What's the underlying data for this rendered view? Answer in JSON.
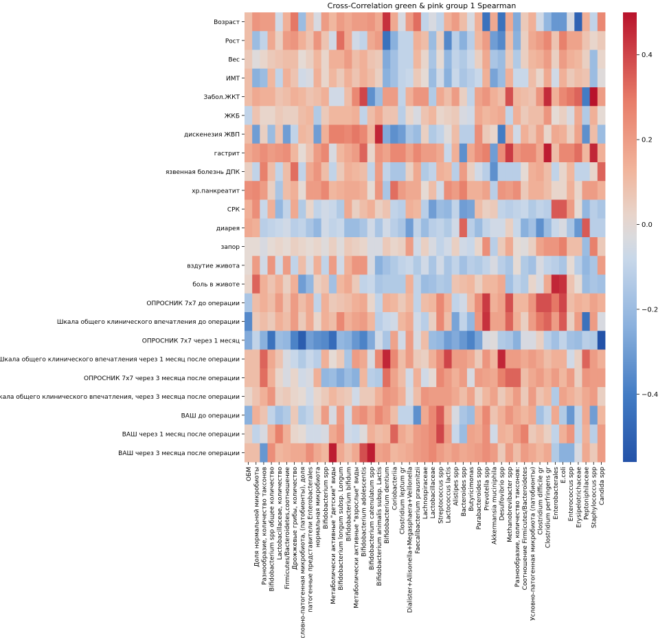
{
  "chart_data": {
    "type": "heatmap",
    "title": "Cross-Correlation green & pink group 1 Spearman",
    "xlabel": "",
    "ylabel": "",
    "rows": [
      "Возраст",
      "Рост",
      "Вес",
      "ИМТ",
      "Забол.ЖКТ",
      "ЖКБ",
      "дискенезия ЖВП",
      "гастрит",
      "язвенная болезнь ДПК",
      "хр.панкреатит",
      "СРК",
      "диарея",
      "запор",
      "вздутие живота",
      "боль в животе",
      "ОПРОСНИК 7х7 до операции",
      "Шкала общего клинического впечатления до операции",
      "ОПРОСНИК 7х7 через 1 месяц",
      "Шкала общего клинического впечатления через 1 месяц после операции",
      "ОПРОСНИК 7х7 через 3 месяца после операции",
      "Шкала общего клинического впечатления, через 3 месяца после операции",
      "ВАШ до операции",
      "ВАШ через 1 месяц после операции",
      "ВАШ через 3 месяца после операции"
    ],
    "columns": [
      "ОБМ",
      "Доля нормальной микробиоты",
      "Разнообразие, количество таксонов",
      "Bifidobacterium spp общее количество",
      "Lactobacillaceae, количество",
      "Firmicutes/Bacteroidetes,соотношение",
      "Дрожжевые грибы, количество",
      "Условно-патогенная микробиота, (патобионты), доля",
      "патогенные представители Enterobacterales",
      "нормальная микробиота",
      "Bifidobacterium spp",
      "Метаболически активные \"детские\" виды",
      "Bifidobacterium longum subsp. Longum",
      "Bifidobacterium bifidum",
      "Метаболически активные \"взрослые\" виды",
      "Bifidobacterium adolescentis",
      "Bifidobacterium catenulatum spp",
      "Bifidobacterium animalis subsp. Lactis",
      "Bifidobacterium dentium",
      "Coriobacteriia",
      "Clostridium leptum gr",
      "Dialister+Allisonella+Megasphaera+Veillonella",
      "Faecalibacterium prausnitzii",
      "Lachnospiraceae",
      "Lactobacillaceae",
      "Streptococcus spp",
      "Lactococcus lactis",
      "Alistipes spp",
      "Bacteroides spp",
      "Butyricimonas",
      "Parabacteroides spp",
      "Prevotella spp",
      "Akkermansia muciniphila",
      "Desulfovibrio spp",
      "Methanobrevibacter spp",
      "Разнообразие, количество таксонов:",
      "Соотношение Firmicutes/Bacteroidetes",
      "Условно-патогенная микробиота (патобионты)",
      "Clostridium difficile gr",
      "Clostridium perfringens gr",
      "Enterobacterales",
      "E.coli",
      "Enterococcus spp",
      "Erysipelotrichaceae",
      "Peptoniphilaceae",
      "Staphylococcus spp",
      "Candida spp"
    ],
    "colorbar": {
      "ticks": [
        0.4,
        0.2,
        0.0,
        -0.2,
        -0.4
      ],
      "tick_labels": [
        "0.4",
        "0.2",
        "0.0",
        "−0.2",
        "−0.4"
      ],
      "min": -0.56,
      "max": 0.5,
      "colormap": "coolwarm"
    },
    "values": [
      [
        0.1,
        0.22,
        0.2,
        0.2,
        -0.06,
        0.14,
        0.3,
        -0.2,
        0.1,
        -0.04,
        0.2,
        0.12,
        0.2,
        0.16,
        0.2,
        0.2,
        0.22,
        0.16,
        0.44,
        0.16,
        -0.04,
        0.2,
        0.32,
        -0.1,
        -0.04,
        -0.1,
        0.14,
        0.2,
        0.1,
        -0.04,
        0.14,
        -0.44,
        0.16,
        -0.44,
        0.16,
        -0.26,
        0.06,
        0.14,
        -0.06,
        -0.22,
        -0.32,
        -0.32,
        -0.04,
        -0.5,
        0.14,
        -0.1,
        0.26
      ],
      [
        0.1,
        -0.2,
        -0.1,
        0.16,
        0.04,
        0.2,
        0.22,
        0.14,
        0.08,
        0.22,
        0.08,
        -0.06,
        0.32,
        0.16,
        -0.06,
        -0.1,
        0.16,
        0.2,
        -0.44,
        -0.24,
        -0.1,
        -0.1,
        0.14,
        0.1,
        -0.2,
        0.04,
        -0.36,
        -0.12,
        -0.24,
        -0.12,
        0.12,
        0.2,
        -0.3,
        -0.36,
        0.1,
        -0.24,
        0.04,
        0.16,
        0.2,
        0.26,
        0.08,
        0.28,
        0.18,
        0.18,
        0.08,
        0.02,
        0.06
      ],
      [
        0.06,
        -0.02,
        0.02,
        0.06,
        0.08,
        0.1,
        0.1,
        0.0,
        0.04,
        0.12,
        0.02,
        0.14,
        0.14,
        0.2,
        0.1,
        0.14,
        0.08,
        0.06,
        -0.26,
        -0.18,
        -0.1,
        -0.1,
        0.12,
        0.02,
        -0.16,
        0.0,
        -0.22,
        -0.1,
        -0.14,
        -0.08,
        0.04,
        0.16,
        -0.16,
        -0.2,
        0.06,
        -0.14,
        0.04,
        0.12,
        0.14,
        0.2,
        0.04,
        0.2,
        0.14,
        0.12,
        0.04,
        -0.2,
        0.02
      ],
      [
        0.1,
        -0.24,
        -0.2,
        0.12,
        -0.1,
        0.14,
        0.08,
        -0.06,
        -0.04,
        0.14,
        0.02,
        0.12,
        0.06,
        0.14,
        0.08,
        0.14,
        0.1,
        0.04,
        -0.24,
        -0.18,
        -0.1,
        -0.08,
        0.06,
        0.0,
        -0.2,
        -0.06,
        -0.24,
        -0.08,
        -0.16,
        -0.12,
        -0.08,
        0.14,
        -0.28,
        -0.2,
        0.14,
        -0.08,
        -0.08,
        0.1,
        0.02,
        0.16,
        -0.06,
        0.14,
        0.06,
        0.1,
        0.08,
        -0.2,
        -0.02
      ],
      [
        0.1,
        0.16,
        0.14,
        0.14,
        0.08,
        0.1,
        0.14,
        0.12,
        0.08,
        0.1,
        0.14,
        -0.06,
        -0.06,
        0.1,
        0.26,
        0.4,
        -0.34,
        -0.2,
        0.2,
        0.2,
        -0.1,
        0.14,
        0.22,
        0.22,
        -0.14,
        0.16,
        0.1,
        0.2,
        0.04,
        -0.1,
        0.18,
        0.22,
        0.14,
        0.1,
        0.38,
        0.12,
        0.1,
        0.08,
        0.22,
        0.45,
        0.14,
        0.26,
        0.3,
        0.34,
        -0.4,
        0.5,
        0.2
      ],
      [
        -0.1,
        0.08,
        0.02,
        0.02,
        0.06,
        0.04,
        0.04,
        0.1,
        0.12,
        -0.14,
        0.06,
        0.12,
        0.12,
        0.12,
        0.14,
        -0.1,
        0.1,
        0.16,
        0.08,
        0.08,
        -0.12,
        0.02,
        -0.04,
        0.08,
        0.12,
        0.02,
        0.04,
        0.06,
        -0.04,
        -0.06,
        0.16,
        0.12,
        0.14,
        0.16,
        -0.1,
        0.14,
        0.06,
        0.1,
        0.1,
        0.22,
        0.0,
        0.04,
        -0.04,
        0.16,
        -0.14,
        0.14,
        0.0
      ],
      [
        0.1,
        -0.3,
        0.04,
        -0.2,
        0.08,
        -0.3,
        -0.1,
        0.12,
        0.1,
        -0.3,
        0.14,
        0.28,
        0.28,
        0.26,
        0.3,
        0.26,
        0.12,
        0.46,
        -0.26,
        -0.34,
        -0.3,
        -0.16,
        -0.2,
        0.04,
        -0.14,
        -0.1,
        -0.02,
        0.1,
        -0.12,
        -0.12,
        0.24,
        0.06,
        0.02,
        -0.4,
        0.14,
        -0.06,
        0.14,
        0.08,
        0.18,
        0.02,
        0.16,
        0.14,
        0.04,
        0.18,
        -0.34,
        0.1,
        -0.2
      ],
      [
        0.16,
        0.2,
        0.24,
        0.2,
        0.22,
        0.24,
        0.12,
        0.0,
        0.08,
        0.2,
        0.26,
        -0.04,
        0.12,
        0.16,
        0.2,
        0.34,
        0.02,
        0.22,
        0.18,
        0.26,
        0.26,
        0.18,
        0.26,
        0.2,
        0.2,
        0.16,
        -0.08,
        0.14,
        -0.34,
        0.16,
        0.24,
        0.28,
        -0.3,
        0.24,
        0.42,
        0.22,
        0.26,
        0.26,
        0.16,
        0.48,
        0.1,
        0.26,
        0.26,
        0.32,
        0.12,
        0.46,
        0.14
      ],
      [
        0.04,
        -0.1,
        0.28,
        0.1,
        -0.1,
        0.1,
        0.32,
        -0.1,
        0.16,
        0.22,
        0.1,
        -0.1,
        0.06,
        0.14,
        0.12,
        0.1,
        -0.1,
        0.2,
        -0.1,
        -0.16,
        -0.16,
        0.04,
        0.16,
        -0.14,
        -0.1,
        0.14,
        0.12,
        -0.12,
        0.2,
        0.04,
        -0.06,
        -0.12,
        -0.34,
        -0.12,
        -0.12,
        -0.12,
        0.0,
        0.14,
        0.16,
        0.1,
        -0.1,
        0.02,
        0.12,
        -0.1,
        -0.1,
        0.02,
        0.34
      ],
      [
        0.24,
        0.26,
        0.2,
        0.04,
        -0.16,
        0.1,
        0.14,
        0.0,
        0.2,
        0.2,
        0.26,
        0.12,
        0.14,
        0.16,
        0.16,
        0.14,
        0.0,
        0.22,
        -0.16,
        0.32,
        0.2,
        0.16,
        0.16,
        0.0,
        0.1,
        -0.06,
        0.24,
        0.2,
        0.28,
        0.14,
        0.14,
        0.18,
        -0.12,
        0.22,
        0.2,
        0.24,
        0.06,
        0.14,
        0.14,
        0.1,
        0.02,
        0.02,
        0.14,
        0.02,
        0.2,
        0.2,
        0.14
      ],
      [
        0.14,
        0.24,
        -0.08,
        0.14,
        -0.22,
        -0.1,
        0.16,
        -0.14,
        0.02,
        -0.1,
        -0.06,
        -0.08,
        -0.14,
        0.16,
        0.04,
        0.1,
        0.14,
        0.04,
        0.08,
        -0.1,
        -0.12,
        0.14,
        0.12,
        -0.12,
        -0.3,
        -0.2,
        -0.22,
        -0.1,
        -0.3,
        -0.28,
        0.1,
        0.04,
        0.06,
        -0.1,
        -0.12,
        -0.1,
        -0.08,
        -0.14,
        -0.1,
        -0.12,
        0.36,
        0.36,
        0.2,
        0.0,
        -0.22,
        -0.12,
        -0.16
      ],
      [
        0.16,
        0.14,
        -0.12,
        -0.1,
        -0.08,
        -0.06,
        -0.12,
        -0.1,
        -0.16,
        -0.22,
        -0.06,
        -0.1,
        -0.08,
        -0.2,
        -0.2,
        -0.16,
        -0.06,
        -0.16,
        -0.06,
        -0.12,
        -0.16,
        -0.3,
        -0.1,
        -0.2,
        -0.12,
        -0.1,
        -0.14,
        -0.06,
        0.34,
        -0.12,
        -0.2,
        -0.1,
        -0.06,
        -0.06,
        0.04,
        -0.08,
        -0.24,
        -0.18,
        -0.34,
        -0.2,
        -0.08,
        -0.04,
        -0.16,
        -0.32,
        0.36,
        -0.12,
        -0.12
      ],
      [
        0.0,
        0.0,
        -0.04,
        0.0,
        0.02,
        0.0,
        0.04,
        0.02,
        0.0,
        0.02,
        -0.02,
        0.04,
        -0.02,
        0.06,
        0.04,
        0.02,
        -0.04,
        -0.04,
        0.06,
        0.02,
        0.04,
        0.2,
        -0.06,
        0.04,
        -0.04,
        -0.1,
        -0.06,
        0.04,
        -0.06,
        -0.08,
        0.02,
        0.24,
        -0.12,
        0.06,
        0.16,
        0.0,
        -0.02,
        0.04,
        0.18,
        0.22,
        0.22,
        0.28,
        0.1,
        0.1,
        -0.2,
        0.28,
        0.06
      ],
      [
        0.0,
        0.2,
        -0.06,
        0.22,
        -0.06,
        0.2,
        -0.1,
        0.1,
        -0.04,
        0.14,
        -0.1,
        0.2,
        -0.06,
        0.14,
        0.22,
        0.22,
        -0.04,
        -0.24,
        -0.18,
        -0.14,
        -0.1,
        -0.08,
        -0.14,
        -0.06,
        -0.16,
        -0.06,
        -0.16,
        -0.1,
        -0.18,
        -0.12,
        -0.14,
        -0.1,
        -0.04,
        -0.12,
        -0.16,
        0.0,
        -0.14,
        -0.18,
        -0.04,
        -0.1,
        -0.12,
        -0.16,
        0.0,
        -0.12,
        -0.22,
        -0.16,
        0.2
      ],
      [
        0.02,
        0.34,
        0.14,
        0.08,
        0.14,
        0.04,
        0.14,
        -0.3,
        -0.22,
        0.04,
        0.08,
        -0.18,
        0.12,
        0.16,
        0.06,
        -0.1,
        -0.08,
        -0.16,
        -0.14,
        -0.14,
        -0.14,
        0.14,
        -0.1,
        -0.2,
        -0.18,
        -0.14,
        -0.16,
        0.08,
        0.1,
        0.12,
        0.04,
        0.12,
        0.12,
        0.16,
        -0.18,
        -0.1,
        -0.14,
        0.02,
        -0.04,
        0.16,
        0.46,
        0.44,
        0.08,
        0.0,
        -0.2,
        -0.16,
        -0.18
      ],
      [
        -0.16,
        0.1,
        0.14,
        0.1,
        0.2,
        0.08,
        0.2,
        0.1,
        0.16,
        -0.1,
        0.14,
        0.06,
        0.08,
        0.1,
        0.14,
        0.16,
        0.02,
        -0.1,
        0.14,
        0.12,
        0.06,
        0.12,
        -0.1,
        0.1,
        0.12,
        0.26,
        0.14,
        -0.1,
        -0.06,
        0.1,
        0.24,
        0.42,
        0.14,
        0.18,
        0.38,
        0.12,
        0.12,
        0.22,
        0.38,
        0.38,
        0.3,
        0.4,
        0.1,
        0.14,
        0.12,
        0.18,
        0.14
      ],
      [
        -0.36,
        0.06,
        0.1,
        0.06,
        0.14,
        0.1,
        0.2,
        0.06,
        0.16,
        0.02,
        0.14,
        0.1,
        0.26,
        0.14,
        0.18,
        0.2,
        0.12,
        -0.12,
        -0.08,
        -0.06,
        0.12,
        0.16,
        -0.06,
        -0.12,
        0.04,
        0.26,
        0.1,
        -0.28,
        -0.1,
        -0.22,
        0.22,
        0.44,
        0.18,
        0.18,
        0.34,
        0.14,
        0.04,
        0.2,
        0.3,
        0.34,
        0.2,
        0.36,
        0.04,
        0.2,
        -0.44,
        0.2,
        -0.04
      ],
      [
        -0.26,
        -0.1,
        -0.24,
        -0.44,
        -0.2,
        -0.22,
        -0.38,
        -0.52,
        -0.3,
        -0.34,
        -0.36,
        -0.46,
        -0.22,
        -0.24,
        -0.32,
        -0.38,
        -0.26,
        -0.06,
        -0.16,
        0.18,
        -0.06,
        0.2,
        -0.04,
        0.1,
        -0.2,
        -0.22,
        -0.3,
        -0.26,
        -0.32,
        -0.38,
        -0.28,
        -0.04,
        -0.02,
        -0.14,
        -0.16,
        -0.24,
        -0.04,
        -0.04,
        0.04,
        -0.12,
        -0.18,
        -0.1,
        -0.18,
        -0.2,
        -0.12,
        -0.14,
        -0.56
      ],
      [
        0.1,
        0.1,
        0.34,
        0.16,
        0.08,
        -0.04,
        -0.08,
        -0.14,
        -0.08,
        -0.12,
        0.14,
        0.0,
        0.06,
        -0.16,
        0.2,
        0.16,
        -0.04,
        0.26,
        0.46,
        0.26,
        0.1,
        0.2,
        0.06,
        0.04,
        0.14,
        0.24,
        0.4,
        0.2,
        0.2,
        0.16,
        0.06,
        0.22,
        0.12,
        0.46,
        0.2,
        0.2,
        0.16,
        0.2,
        0.16,
        0.1,
        0.14,
        0.14,
        -0.06,
        0.04,
        0.34,
        0.2,
        0.14
      ],
      [
        0.1,
        0.1,
        0.32,
        0.14,
        0.02,
        -0.04,
        0.02,
        -0.06,
        -0.04,
        0.14,
        -0.22,
        -0.2,
        -0.26,
        -0.2,
        -0.24,
        0.12,
        -0.12,
        -0.14,
        0.32,
        0.18,
        0.1,
        -0.06,
        0.14,
        -0.06,
        0.0,
        0.26,
        0.2,
        0.14,
        0.2,
        -0.04,
        0.2,
        0.18,
        0.16,
        0.28,
        0.34,
        0.34,
        0.1,
        0.16,
        0.2,
        0.14,
        0.2,
        0.12,
        0.2,
        0.04,
        0.22,
        0.2,
        0.2
      ],
      [
        0.02,
        0.08,
        0.14,
        0.22,
        0.04,
        0.06,
        0.02,
        0.0,
        -0.06,
        0.02,
        0.06,
        0.12,
        0.08,
        0.06,
        -0.06,
        0.06,
        0.06,
        0.14,
        0.22,
        0.2,
        0.14,
        -0.04,
        0.1,
        0.22,
        0.2,
        0.2,
        0.2,
        0.16,
        0.1,
        0.18,
        0.04,
        0.12,
        0.18,
        0.06,
        0.12,
        0.2,
        0.06,
        0.2,
        0.08,
        0.12,
        -0.14,
        0.18,
        0.14,
        0.1,
        0.16,
        0.2,
        0.04
      ],
      [
        -0.24,
        0.14,
        0.08,
        -0.1,
        -0.18,
        -0.14,
        0.06,
        -0.14,
        -0.1,
        0.04,
        0.2,
        -0.04,
        0.2,
        -0.06,
        0.2,
        0.24,
        0.16,
        0.26,
        0.2,
        0.1,
        -0.1,
        -0.1,
        -0.34,
        0.16,
        0.26,
        0.36,
        0.14,
        -0.04,
        -0.16,
        -0.2,
        0.14,
        0.26,
        0.08,
        0.14,
        0.22,
        0.16,
        0.12,
        0.16,
        -0.18,
        -0.1,
        0.16,
        -0.14,
        -0.32,
        -0.1,
        0.16,
        -0.3,
        0.12
      ],
      [
        0.04,
        -0.1,
        -0.04,
        0.14,
        0.28,
        0.14,
        0.02,
        0.0,
        -0.06,
        -0.06,
        -0.04,
        0.16,
        0.22,
        -0.06,
        -0.08,
        -0.02,
        0.14,
        0.1,
        0.12,
        0.34,
        0.16,
        0.12,
        0.2,
        0.22,
        0.26,
        0.4,
        0.2,
        -0.08,
        -0.2,
        0.18,
        0.16,
        0.24,
        -0.06,
        0.14,
        0.12,
        0.2,
        0.28,
        0.06,
        0.1,
        0.04,
        -0.1,
        0.14,
        0.22,
        -0.1,
        0.14,
        -0.12,
        0.2
      ],
      [
        0.1,
        0.1,
        -0.32,
        0.24,
        0.12,
        0.14,
        0.16,
        0.16,
        0.24,
        0.16,
        0.12,
        0.48,
        0.16,
        0.1,
        0.16,
        0.38,
        0.48,
        0.18,
        0.2,
        0.12,
        0.14,
        0.16,
        0.2,
        0.22,
        0.26,
        0.2,
        0.16,
        0.2,
        0.16,
        0.18,
        0.2,
        0.24,
        0.2,
        0.06,
        0.2,
        0.1,
        0.2,
        0.16,
        0.12,
        0.16,
        -0.14,
        -0.24,
        -0.24,
        -0.04,
        0.16,
        0.06,
        0.2
      ]
    ]
  }
}
